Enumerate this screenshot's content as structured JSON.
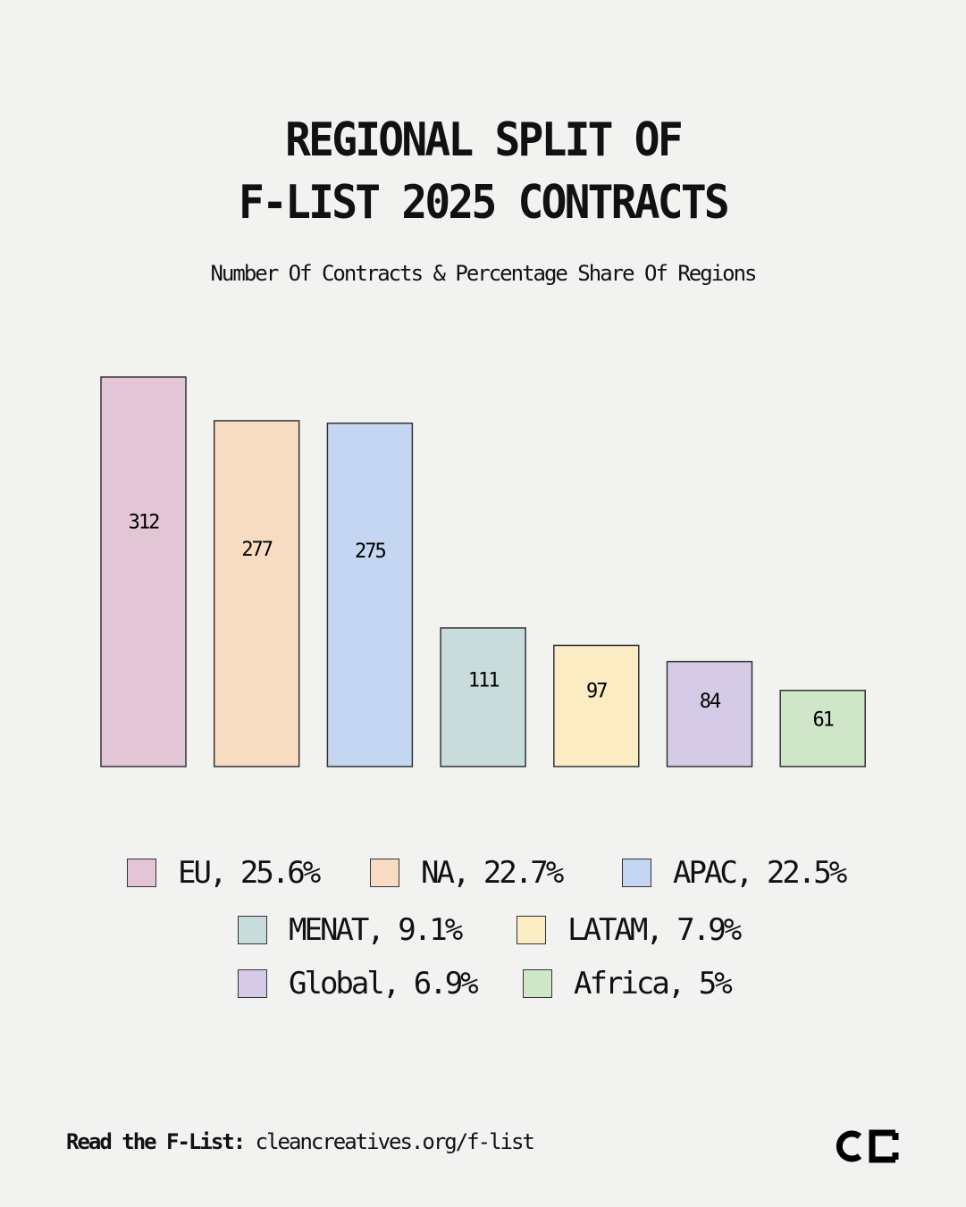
{
  "chart_data": {
    "type": "bar",
    "title": "REGIONAL SPLIT OF\nF-LIST 2025 CONTRACTS",
    "title_lines": [
      "REGIONAL SPLIT OF",
      "F-LIST 2025 CONTRACTS"
    ],
    "subtitle": "Number Of Contracts & Percentage Share Of Regions",
    "categories": [
      "EU",
      "NA",
      "APAC",
      "MENAT",
      "LATAM",
      "Global",
      "Africa"
    ],
    "values": [
      312,
      277,
      275,
      111,
      97,
      84,
      61
    ],
    "data_labels": [
      "312",
      "277",
      "275",
      "111",
      "97",
      "84",
      "61"
    ],
    "colors": [
      "#e2c6d6",
      "#f8dcc2",
      "#c4d6f2",
      "#c9dcdc",
      "#fbecc4",
      "#d6cbe6",
      "#cfe6c9"
    ],
    "legend": [
      "EU, 25.6%",
      "NA, 22.7%",
      "APAC, 22.5%",
      "MENAT, 9.1%",
      "LATAM, 7.9%",
      "Global, 6.9%",
      "Africa, 5%"
    ],
    "legend_placement": "bottom",
    "grid": false,
    "axes_visible": false
  },
  "footer": {
    "label": "Read the F-List:",
    "link": "cleancreatives.org/f-list"
  },
  "logo": {
    "text": "CC"
  }
}
